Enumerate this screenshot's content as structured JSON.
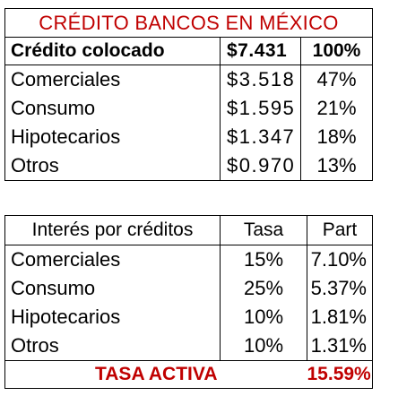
{
  "credit_table": {
    "title": "CRÉDITO BANCOS EN MÉXICO",
    "header": {
      "label": "Crédito colocado",
      "amount": "$7.431",
      "percent": "100%"
    },
    "rows": [
      {
        "label": "Comerciales",
        "amount": "$3.518",
        "percent": "47%"
      },
      {
        "label": "Consumo",
        "amount": "$1.595",
        "percent": "21%"
      },
      {
        "label": "Hipotecarios",
        "amount": "$1.347",
        "percent": "18%"
      },
      {
        "label": "Otros",
        "amount": "$0.970",
        "percent": "13%"
      }
    ]
  },
  "interest_table": {
    "header": {
      "label": "Interés por créditos",
      "rate": "Tasa",
      "part": "Part"
    },
    "rows": [
      {
        "label": "Comerciales",
        "rate": "15%",
        "part": "7.10%"
      },
      {
        "label": "Consumo",
        "rate": "25%",
        "part": "5.37%"
      },
      {
        "label": "Hipotecarios",
        "rate": "10%",
        "part": "1.81%"
      },
      {
        "label": "Otros",
        "rate": "10%",
        "part": "1.31%"
      }
    ],
    "total": {
      "label": "TASA ACTIVA",
      "value": "15.59%"
    }
  },
  "colors": {
    "accent": "#c00000",
    "text": "#000000",
    "border": "#000000",
    "background": "#ffffff"
  }
}
